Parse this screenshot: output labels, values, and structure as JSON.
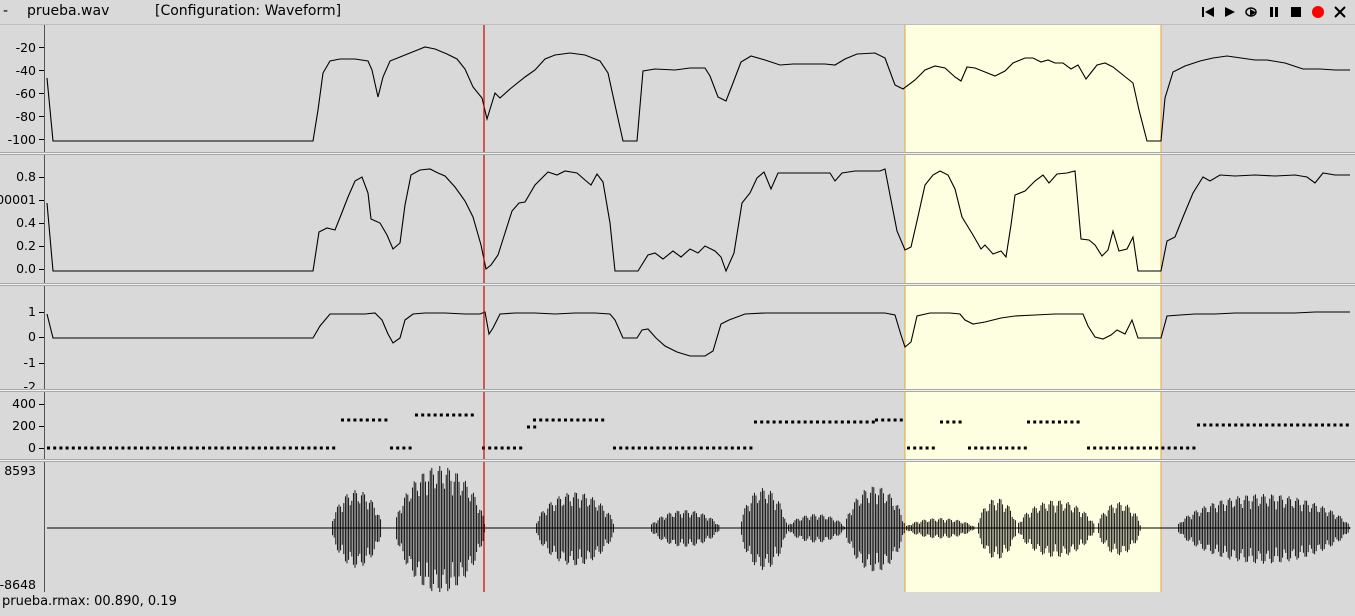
{
  "titlebar": {
    "dash": "-",
    "filename": "prueba.wav",
    "configuration": "[Configuration: Waveform]"
  },
  "controls": [
    "skip-to-start-icon",
    "play-icon",
    "loop-play-icon",
    "pause-icon",
    "stop-icon",
    "record-icon",
    "close-icon"
  ],
  "colors": {
    "background": "#d9d9d9",
    "cursor": "#cc0000",
    "selection_fill": "#fefee0",
    "selection_border": "#e8a53a",
    "record": "#ff0000"
  },
  "cursor": {
    "time_fraction": 0.34
  },
  "selection": {
    "start_fraction": 0.655,
    "end_fraction": 0.85
  },
  "panels": {
    "energy": {
      "ticks": [
        "-20",
        "-40",
        "-60",
        "-80",
        "-100"
      ]
    },
    "voicing": {
      "ticks": [
        "0.8",
        "00001",
        "0.4",
        "0.2",
        "0.0"
      ]
    },
    "correlation": {
      "ticks": [
        "1",
        "0",
        "-1",
        "-2"
      ]
    },
    "pitch": {
      "ticks": [
        "400",
        "200",
        "0"
      ]
    },
    "waveform": {
      "max_label": "8593",
      "min_label": "-8648"
    }
  },
  "status": {
    "text": "prueba.rmax: 00.890, 0.19"
  }
}
